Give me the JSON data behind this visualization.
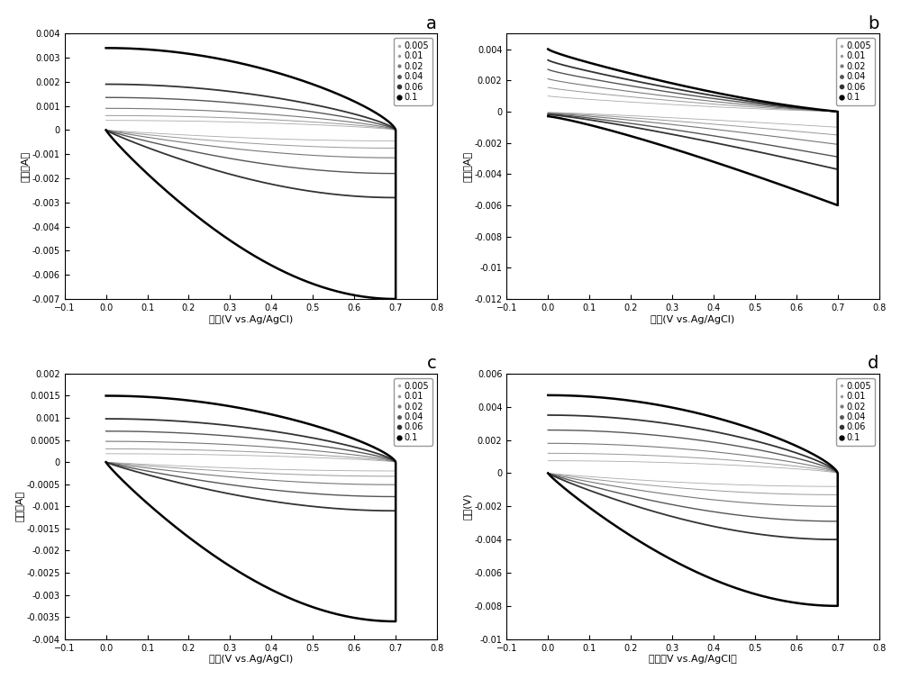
{
  "scan_rates": [
    0.005,
    0.01,
    0.02,
    0.04,
    0.06,
    0.1
  ],
  "subplots": {
    "a": {
      "title": "a",
      "ylabel": "电流（A）",
      "xlabel": "电压(V vs.Ag/AgCl)",
      "ylim": [
        -0.007,
        0.004
      ],
      "yticks": [
        -0.007,
        -0.006,
        -0.005,
        -0.004,
        -0.003,
        -0.002,
        -0.001,
        0.0,
        0.001,
        0.002,
        0.003,
        0.004
      ],
      "I_upper": [
        0.0004,
        0.0006,
        0.0009,
        0.00135,
        0.0019,
        0.0034
      ],
      "I_lower": [
        0.00045,
        0.00075,
        0.00115,
        0.0018,
        0.0028,
        0.007
      ],
      "shape": "a"
    },
    "b": {
      "title": "b",
      "ylabel": "电流（A）",
      "xlabel": "电压(V vs.Ag/AgCl)",
      "ylim": [
        -0.012,
        0.005
      ],
      "yticks": [
        -0.012,
        -0.01,
        -0.008,
        -0.006,
        -0.004,
        -0.002,
        0.0,
        0.002,
        0.004
      ],
      "I_upper": [
        0.001,
        0.00155,
        0.0021,
        0.0027,
        0.0033,
        0.004
      ],
      "I_lower": [
        0.001,
        0.0015,
        0.0021,
        0.0029,
        0.0037,
        0.006
      ],
      "shape": "b"
    },
    "c": {
      "title": "c",
      "ylabel": "电流（A）",
      "xlabel": "电压(V vs.Ag/AgCl)",
      "ylim": [
        -0.004,
        0.002
      ],
      "yticks": [
        -0.004,
        -0.0035,
        -0.003,
        -0.0025,
        -0.002,
        -0.0015,
        -0.001,
        -0.0005,
        0.0,
        0.0005,
        0.001,
        0.0015,
        0.002
      ],
      "I_upper": [
        0.00019,
        0.0003,
        0.00047,
        0.0007,
        0.00098,
        0.0015
      ],
      "I_lower": [
        0.0002,
        0.00032,
        0.00051,
        0.00078,
        0.0011,
        0.0036
      ],
      "shape": "a"
    },
    "d": {
      "title": "d",
      "ylabel": "电压(V)",
      "xlabel": "电流（V vs.Ag/AgCl）",
      "ylim": [
        -0.01,
        0.006
      ],
      "yticks": [
        -0.01,
        -0.008,
        -0.006,
        -0.004,
        -0.002,
        0.0,
        0.002,
        0.004,
        0.006
      ],
      "I_upper": [
        0.00075,
        0.0012,
        0.0018,
        0.0026,
        0.0035,
        0.0047
      ],
      "I_lower": [
        0.0008,
        0.0013,
        0.002,
        0.0029,
        0.004,
        0.008
      ],
      "shape": "a"
    }
  },
  "line_colors": [
    "#aaaaaa",
    "#999999",
    "#777777",
    "#555555",
    "#333333",
    "#000000"
  ],
  "line_widths": [
    0.6,
    0.7,
    0.8,
    1.0,
    1.3,
    1.8
  ],
  "scan_rate_labels": [
    "0.005",
    "0.01",
    "0.02",
    "0.04",
    "0.06",
    "0.1"
  ],
  "marker_sizes": [
    3,
    3,
    4,
    5,
    6,
    7
  ]
}
